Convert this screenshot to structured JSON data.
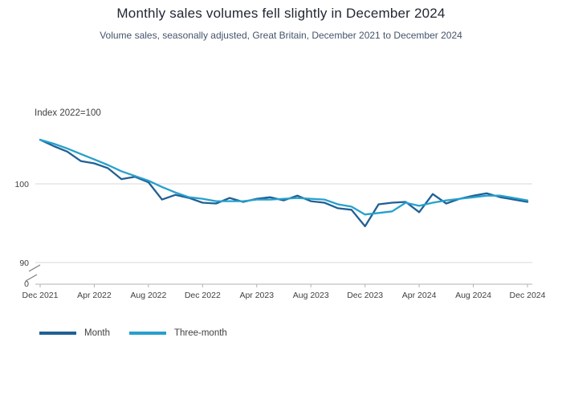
{
  "chart_data": {
    "type": "line",
    "title": "Monthly sales volumes fell slightly in December 2024",
    "subtitle": "Volume sales, seasonally adjusted, Great Britain, December 2021 to December 2024",
    "y_axis_label": "Index 2022=100",
    "y_ticks": [
      100,
      90,
      0
    ],
    "y_axis_break": true,
    "ylim_plot": [
      90,
      107
    ],
    "grid": "horizontal",
    "legend_position": "bottom-left",
    "x": [
      "Dec 2021",
      "Jan 2022",
      "Feb 2022",
      "Mar 2022",
      "Apr 2022",
      "May 2022",
      "Jun 2022",
      "Jul 2022",
      "Aug 2022",
      "Sep 2022",
      "Oct 2022",
      "Nov 2022",
      "Dec 2022",
      "Jan 2023",
      "Feb 2023",
      "Mar 2023",
      "Apr 2023",
      "May 2023",
      "Jun 2023",
      "Jul 2023",
      "Aug 2023",
      "Sep 2023",
      "Oct 2023",
      "Nov 2023",
      "Dec 2023",
      "Jan 2024",
      "Feb 2024",
      "Mar 2024",
      "Apr 2024",
      "May 2024",
      "Jun 2024",
      "Jul 2024",
      "Aug 2024",
      "Sep 2024",
      "Oct 2024",
      "Nov 2024",
      "Dec 2024"
    ],
    "x_tick_labels": [
      "Dec 2021",
      "Apr 2022",
      "Aug 2022",
      "Dec 2022",
      "Apr 2023",
      "Aug 2023",
      "Dec 2023",
      "Apr 2024",
      "Aug 2024",
      "Dec 2024"
    ],
    "series": [
      {
        "name": "Month",
        "color": "#206095",
        "values": [
          105.6,
          104.8,
          104.1,
          102.9,
          102.6,
          102.0,
          100.6,
          100.9,
          100.2,
          98.0,
          98.6,
          98.2,
          97.6,
          97.5,
          98.2,
          97.7,
          98.1,
          98.3,
          97.9,
          98.5,
          97.8,
          97.6,
          96.9,
          96.7,
          94.6,
          97.4,
          97.6,
          97.7,
          96.4,
          98.7,
          97.5,
          98.1,
          98.5,
          98.8,
          98.3,
          98.0,
          97.7
        ]
      },
      {
        "name": "Three-month",
        "color": "#27a0cc",
        "values": [
          105.6,
          105.1,
          104.5,
          103.8,
          103.1,
          102.4,
          101.6,
          101.0,
          100.4,
          99.6,
          98.9,
          98.3,
          98.1,
          97.8,
          97.8,
          97.8,
          98.0,
          98.0,
          98.1,
          98.2,
          98.1,
          98.0,
          97.4,
          97.1,
          96.1,
          96.3,
          96.5,
          97.6,
          97.2,
          97.6,
          97.9,
          98.1,
          98.3,
          98.5,
          98.5,
          98.2,
          97.9
        ]
      }
    ],
    "axis_colors": {
      "gridline": "#d9d9d9",
      "baseline": "#b3b3b3",
      "break_mark": "#7f7f7f"
    }
  }
}
